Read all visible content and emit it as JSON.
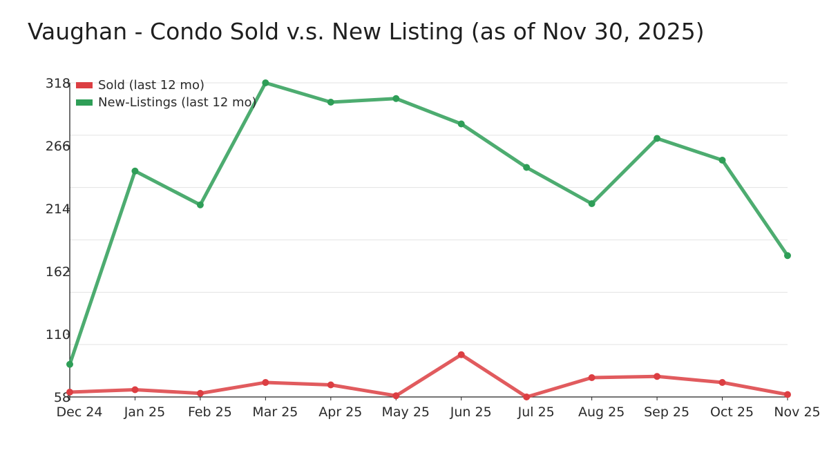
{
  "chart_data": {
    "type": "line",
    "title": "Vaughan - Condo Sold v.s. New Listing (as of Nov 30, 2025)",
    "xlabel": "",
    "ylabel": "",
    "categories": [
      "Dec 24",
      "Jan 25",
      "Feb 25",
      "Mar 25",
      "Apr 25",
      "May 25",
      "Jun 25",
      "Jul 25",
      "Aug 25",
      "Sep 25",
      "Oct 25",
      "Nov 25"
    ],
    "ylim": [
      58,
      318
    ],
    "yticks": [
      "318",
      "266",
      "214",
      "162",
      "110",
      "58"
    ],
    "ytick_values": [
      318,
      266,
      214,
      162,
      110,
      58
    ],
    "grid": true,
    "grid_count": 6,
    "legend_position": "top-left",
    "series": [
      {
        "name": "Sold (last 12 mo)",
        "color": "#dc3e42",
        "values": [
          62,
          64,
          61,
          70,
          68,
          59,
          93,
          58,
          74,
          75,
          70,
          60
        ]
      },
      {
        "name": "New-Listings (last 12 mo)",
        "color": "#2e9e57",
        "values": [
          85,
          245,
          217,
          318,
          302,
          305,
          284,
          248,
          218,
          272,
          254,
          175
        ]
      }
    ]
  }
}
